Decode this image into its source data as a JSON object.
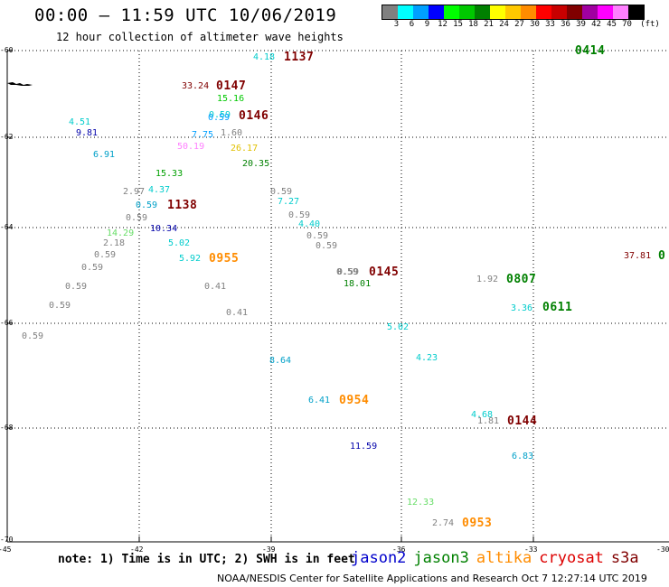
{
  "title": "00:00 — 11:59 UTC 10/06/2019",
  "subtitle": "12 hour collection of altimeter wave heights",
  "legend": {
    "unit": "(ft)",
    "bins": [
      {
        "label": "3",
        "color": "#808080"
      },
      {
        "label": "6",
        "color": "#00ffff"
      },
      {
        "label": "9",
        "color": "#00a0ff"
      },
      {
        "label": "12",
        "color": "#0000ff"
      },
      {
        "label": "15",
        "color": "#00ff00"
      },
      {
        "label": "18",
        "color": "#00c800"
      },
      {
        "label": "21",
        "color": "#008000"
      },
      {
        "label": "24",
        "color": "#ffff00"
      },
      {
        "label": "27",
        "color": "#ffc800"
      },
      {
        "label": "30",
        "color": "#ff8c00"
      },
      {
        "label": "33",
        "color": "#ff0000"
      },
      {
        "label": "36",
        "color": "#c80000"
      },
      {
        "label": "39",
        "color": "#800000"
      },
      {
        "label": "42",
        "color": "#a000a0"
      },
      {
        "label": "45",
        "color": "#ff00ff"
      },
      {
        "label": "70",
        "color": "#ff80ff"
      },
      {
        "label": "",
        "color": "#000000"
      }
    ]
  },
  "axes": {
    "lat_labels": [
      "-60",
      "-62",
      "-64",
      "-66",
      "-68",
      "-70"
    ],
    "lon_labels": [
      "-45",
      "-42",
      "-39",
      "-36",
      "-33",
      "-30"
    ]
  },
  "observations": [
    {
      "v": "4.18",
      "c": "#00cccc"
    },
    {
      "v": "33.24",
      "c": "#800000"
    },
    {
      "v": "15.16",
      "c": "#00c800"
    },
    {
      "v": "0.59",
      "c": "#00cccc"
    },
    {
      "v": "0.59",
      "c": "#00a0ff"
    },
    {
      "v": "4.51",
      "c": "#00cccc"
    },
    {
      "v": "9.81",
      "c": "#0000aa"
    },
    {
      "v": "7.75",
      "c": "#00a0ff"
    },
    {
      "v": "1.60",
      "c": "#808080"
    },
    {
      "v": "50.19",
      "c": "#ff80ff"
    },
    {
      "v": "26.17",
      "c": "#e0c000"
    },
    {
      "v": "6.91",
      "c": "#00a0c8"
    },
    {
      "v": "20.35",
      "c": "#008000"
    },
    {
      "v": "15.33",
      "c": "#00a000"
    },
    {
      "v": "2.97",
      "c": "#808080"
    },
    {
      "v": "4.37",
      "c": "#00cccc"
    },
    {
      "v": "0.59",
      "c": "#808080"
    },
    {
      "v": "7.27",
      "c": "#00cccc"
    },
    {
      "v": "0.59",
      "c": "#00a0c8"
    },
    {
      "v": "0.59",
      "c": "#808080"
    },
    {
      "v": "0.59",
      "c": "#808080"
    },
    {
      "v": "4.40",
      "c": "#00cccc"
    },
    {
      "v": "10.34",
      "c": "#0000aa"
    },
    {
      "v": "14.29",
      "c": "#66dd66"
    },
    {
      "v": "0.59",
      "c": "#808080"
    },
    {
      "v": "2.18",
      "c": "#808080"
    },
    {
      "v": "5.02",
      "c": "#00cccc"
    },
    {
      "v": "0.59",
      "c": "#808080"
    },
    {
      "v": "0.59",
      "c": "#808080"
    },
    {
      "v": "5.92",
      "c": "#00cccc"
    },
    {
      "v": "0.59",
      "c": "#808080"
    },
    {
      "v": "0.59",
      "c": "#808080"
    },
    {
      "v": "18.01",
      "c": "#008000"
    },
    {
      "v": "1.92",
      "c": "#808080"
    },
    {
      "v": "0.59",
      "c": "#808080"
    },
    {
      "v": "0.41",
      "c": "#808080"
    },
    {
      "v": "37.81",
      "c": "#800000"
    },
    {
      "v": "3.36",
      "c": "#00cccc"
    },
    {
      "v": "0.59",
      "c": "#808080"
    },
    {
      "v": "0.41",
      "c": "#808080"
    },
    {
      "v": "5.02",
      "c": "#00cccc"
    },
    {
      "v": "0.59",
      "c": "#808080"
    },
    {
      "v": "4.23",
      "c": "#00cccc"
    },
    {
      "v": "8.64",
      "c": "#00a0c8"
    },
    {
      "v": "6.41",
      "c": "#00a0c8"
    },
    {
      "v": "4.68",
      "c": "#00cccc"
    },
    {
      "v": "1.81",
      "c": "#808080"
    },
    {
      "v": "11.59",
      "c": "#0000aa"
    },
    {
      "v": "6.83",
      "c": "#00a0c8"
    },
    {
      "v": "12.33",
      "c": "#66dd66"
    },
    {
      "v": "2.74",
      "c": "#808080"
    },
    {
      "v": "0.59",
      "c": "#808080"
    }
  ],
  "pass_times": [
    {
      "t": "1137",
      "c": "#800000"
    },
    {
      "t": "0147",
      "c": "#800000"
    },
    {
      "t": "0146",
      "c": "#800000"
    },
    {
      "t": "1138",
      "c": "#800000"
    },
    {
      "t": "0955",
      "c": "#ff8c00"
    },
    {
      "t": "0145",
      "c": "#800000"
    },
    {
      "t": "0807",
      "c": "#008000"
    },
    {
      "t": "0611",
      "c": "#008000"
    },
    {
      "t": "0954",
      "c": "#ff8c00"
    },
    {
      "t": "0144",
      "c": "#800000"
    },
    {
      "t": "0953",
      "c": "#ff8c00"
    },
    {
      "t": "0414",
      "c": "#008000"
    },
    {
      "t": "0",
      "c": "#008000"
    }
  ],
  "note": "note: 1) Time is in UTC; 2) SWH is in feet",
  "satellites": [
    {
      "name": "jason2",
      "color": "#0000cc"
    },
    {
      "name": "jason3",
      "color": "#008000"
    },
    {
      "name": "altika",
      "color": "#ff8c00"
    },
    {
      "name": "cryosat",
      "color": "#dd0000"
    },
    {
      "name": "s3a",
      "color": "#800000"
    }
  ],
  "credit": "NOAA/NESDIS Center for Satellite Applications and Research   Oct  7 12:27:14 UTC 2019"
}
